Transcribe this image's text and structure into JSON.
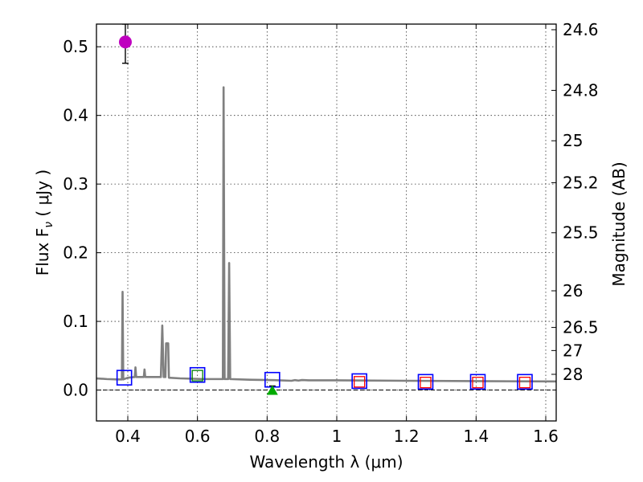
{
  "chart_data": {
    "type": "scatter",
    "title": "",
    "xlabel": "Wavelength  λ (μm)",
    "ylabel": "Flux  F",
    "ylabel_sub": "ν",
    "ylabel_unit": " ( μJy )",
    "y2label": "Magnitude (AB)",
    "xlim": [
      0.31,
      1.63
    ],
    "ylim": [
      -0.045,
      0.533
    ],
    "grid": true,
    "x_ticks": [
      0.4,
      0.6,
      0.8,
      1.0,
      1.2,
      1.4,
      1.6
    ],
    "x_tick_labels": [
      "0.4",
      "0.6",
      "0.8",
      "1",
      "1.2",
      "1.4",
      "1.6"
    ],
    "y_ticks": [
      0.0,
      0.1,
      0.2,
      0.3,
      0.4,
      0.5
    ],
    "y_tick_labels": [
      "0.0",
      "0.1",
      "0.2",
      "0.3",
      "0.4",
      "0.5"
    ],
    "mag_ticks": [
      24.6,
      24.8,
      25,
      25.2,
      25.5,
      26,
      26.5,
      27,
      28
    ],
    "mag_tick_labels": [
      "24.6",
      "24.8",
      "25",
      "25.2",
      "25.5",
      "26",
      "26.5",
      "27",
      "28"
    ],
    "model_color": "#808080",
    "model_spectrum": [
      [
        0.31,
        0.017
      ],
      [
        0.34,
        0.016
      ],
      [
        0.37,
        0.0155
      ],
      [
        0.383,
        0.0155
      ],
      [
        0.385,
        0.143
      ],
      [
        0.387,
        0.0155
      ],
      [
        0.4,
        0.018
      ],
      [
        0.42,
        0.019
      ],
      [
        0.422,
        0.033
      ],
      [
        0.424,
        0.019
      ],
      [
        0.446,
        0.019
      ],
      [
        0.448,
        0.03
      ],
      [
        0.45,
        0.019
      ],
      [
        0.495,
        0.019
      ],
      [
        0.499,
        0.094
      ],
      [
        0.503,
        0.019
      ],
      [
        0.508,
        0.019
      ],
      [
        0.51,
        0.068
      ],
      [
        0.516,
        0.068
      ],
      [
        0.518,
        0.018
      ],
      [
        0.55,
        0.017
      ],
      [
        0.62,
        0.016
      ],
      [
        0.673,
        0.016
      ],
      [
        0.675,
        0.441
      ],
      [
        0.678,
        0.016
      ],
      [
        0.688,
        0.016
      ],
      [
        0.691,
        0.185
      ],
      [
        0.694,
        0.016
      ],
      [
        0.75,
        0.015
      ],
      [
        0.82,
        0.0145
      ],
      [
        0.87,
        0.0135
      ],
      [
        0.88,
        0.0145
      ],
      [
        0.89,
        0.0138
      ],
      [
        0.9,
        0.0146
      ],
      [
        0.92,
        0.0142
      ],
      [
        1.0,
        0.0142
      ],
      [
        1.2,
        0.0135
      ],
      [
        1.4,
        0.013
      ],
      [
        1.63,
        0.0125
      ]
    ],
    "synthetic_photometry": {
      "color": "#0000ff",
      "points": [
        {
          "x": 0.39,
          "y": 0.018
        },
        {
          "x": 0.6,
          "y": 0.022
        },
        {
          "x": 0.815,
          "y": 0.015
        },
        {
          "x": 1.065,
          "y": 0.013
        },
        {
          "x": 1.255,
          "y": 0.012
        },
        {
          "x": 1.405,
          "y": 0.012
        },
        {
          "x": 1.54,
          "y": 0.012
        }
      ]
    },
    "observed_photometry": [
      {
        "x": 0.6,
        "y": 0.021,
        "color": "#008000"
      },
      {
        "x": 1.065,
        "y": 0.012,
        "color": "#ff0000"
      },
      {
        "x": 1.255,
        "y": 0.011,
        "color": "#ff0000"
      },
      {
        "x": 1.405,
        "y": 0.011,
        "color": "#ff0000"
      },
      {
        "x": 1.54,
        "y": 0.011,
        "color": "#ff0000"
      }
    ],
    "detection": {
      "x": 0.393,
      "y": 0.507,
      "err_low": 0.476,
      "err_high": 0.533,
      "color": "#bf00bf"
    },
    "upper_limit": {
      "x": 0.815,
      "y": 0.0,
      "err_high": 0.006,
      "color": "#00aa00"
    },
    "zero_line": 0.0
  }
}
